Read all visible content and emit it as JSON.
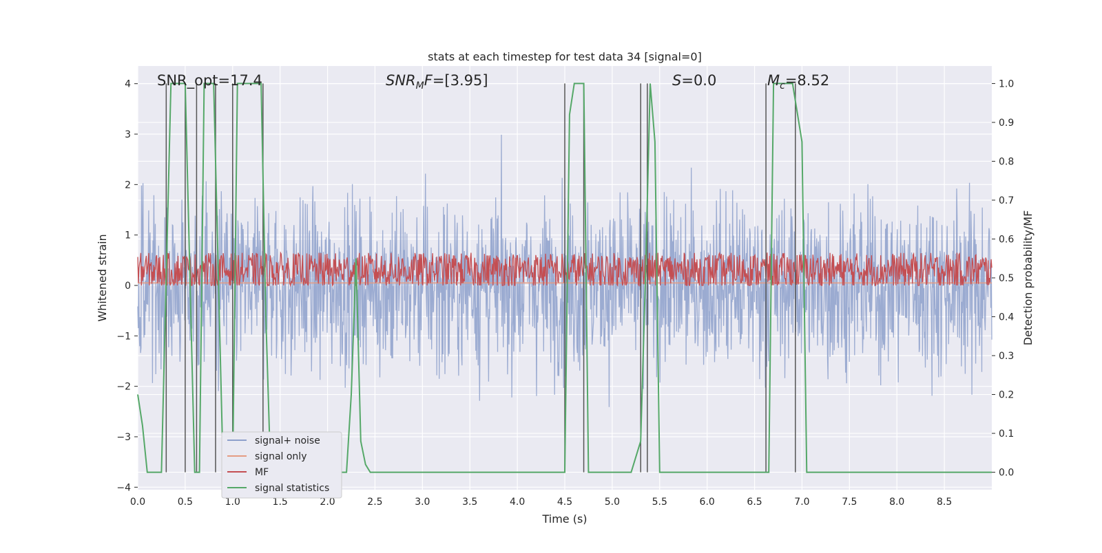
{
  "chart_data": {
    "type": "line",
    "title": "stats at each timestep for test data 34 [signal=0]",
    "xlabel": "Time (s)",
    "ylabel_left": "Whitened strain",
    "ylabel_right": "Detection probability/MF",
    "xlim": [
      0.0,
      9.0
    ],
    "ylim_left": [
      -4.05,
      4.35
    ],
    "ylim_right": [
      -0.045,
      1.045
    ],
    "x_ticks": [
      "0.0",
      "0.5",
      "1.0",
      "1.5",
      "2.0",
      "2.5",
      "3.0",
      "3.5",
      "4.0",
      "4.5",
      "5.0",
      "5.5",
      "6.0",
      "6.5",
      "7.0",
      "7.5",
      "8.0",
      "8.5"
    ],
    "y_ticks_left": [
      "4",
      "3",
      "2",
      "1",
      "0",
      "−1",
      "−2",
      "−3",
      "−4"
    ],
    "y_ticks_right": [
      "1.0",
      "0.9",
      "0.8",
      "0.7",
      "0.6",
      "0.5",
      "0.4",
      "0.3",
      "0.2",
      "0.1",
      "0.0"
    ],
    "grid": true,
    "legend_position": "lower-left",
    "annotations": [
      {
        "id": "snr-opt",
        "text": "SNR_opt=17.4",
        "x": 0.2,
        "y": 4.0
      },
      {
        "id": "snr-mf",
        "main": "SNR",
        "sub": "M",
        "rest": "F=[3.95]",
        "x": 2.6,
        "y": 4.0
      },
      {
        "id": "s",
        "main": "S",
        "rest": "=0.0",
        "x": 5.6,
        "y": 4.0
      },
      {
        "id": "mc",
        "main": "M",
        "sub": "c",
        "rest": "=8.52",
        "x": 6.6,
        "y": 4.0
      }
    ],
    "series": [
      {
        "name": "signal+ noise",
        "color": "#8da0cb",
        "axis": "left",
        "style": "dense-noise",
        "amplitude": 1.6
      },
      {
        "name": "signal only",
        "color": "#e59b82",
        "axis": "left",
        "constant": 0.05
      },
      {
        "name": "MF",
        "color": "#c44e52",
        "axis": "left",
        "style": "dense-noise",
        "center": 0.3,
        "amplitude": 0.35
      },
      {
        "name": "signal statistics",
        "color": "#55a868",
        "axis": "right",
        "x": [
          0.0,
          0.05,
          0.1,
          0.2,
          0.25,
          0.3,
          0.35,
          0.4,
          0.45,
          0.5,
          0.55,
          0.6,
          0.65,
          0.7,
          0.75,
          0.8,
          0.85,
          0.9,
          0.95,
          1.0,
          1.05,
          1.1,
          1.2,
          1.25,
          1.3,
          1.35,
          1.4,
          1.5,
          1.6,
          1.7,
          1.8,
          1.9,
          2.0,
          2.1,
          2.2,
          2.25,
          2.3,
          2.35,
          2.4,
          2.45,
          2.5,
          3.0,
          3.5,
          4.0,
          4.5,
          4.55,
          4.6,
          4.65,
          4.7,
          4.75,
          4.8,
          4.9,
          5.0,
          5.1,
          5.2,
          5.3,
          5.35,
          5.4,
          5.45,
          5.5,
          5.55,
          5.6,
          6.0,
          6.5,
          6.6,
          6.65,
          6.7,
          6.75,
          6.8,
          6.9,
          7.0,
          7.05,
          7.1,
          7.5,
          7.8,
          7.9,
          8.0,
          8.5,
          9.0
        ],
        "values": [
          0.2,
          0.12,
          0.0,
          0.0,
          0.0,
          0.5,
          1.0,
          1.0,
          1.0,
          1.0,
          0.5,
          0.0,
          0.0,
          1.0,
          1.0,
          1.0,
          0.5,
          0.0,
          0.0,
          0.0,
          1.0,
          1.0,
          1.0,
          1.0,
          1.0,
          0.4,
          0.0,
          0.0,
          0.0,
          0.0,
          0.0,
          0.01,
          0.0,
          0.0,
          0.0,
          0.2,
          0.55,
          0.08,
          0.02,
          0.0,
          0.0,
          0.0,
          0.0,
          0.0,
          0.0,
          0.92,
          1.0,
          1.0,
          1.0,
          0.0,
          0.0,
          0.0,
          0.0,
          0.0,
          0.0,
          0.08,
          0.5,
          1.0,
          0.85,
          0.0,
          0.0,
          0.0,
          0.0,
          0.0,
          0.0,
          0.0,
          1.0,
          1.0,
          1.0,
          1.0,
          0.85,
          0.0,
          0.0,
          0.0,
          0.0,
          0.0,
          0.0,
          0.0,
          0.0
        ]
      }
    ],
    "event_lines_x": [
      0.3,
      0.5,
      0.62,
      0.82,
      1.0,
      1.32,
      4.5,
      4.7,
      5.3,
      5.37,
      6.62,
      6.93
    ]
  }
}
